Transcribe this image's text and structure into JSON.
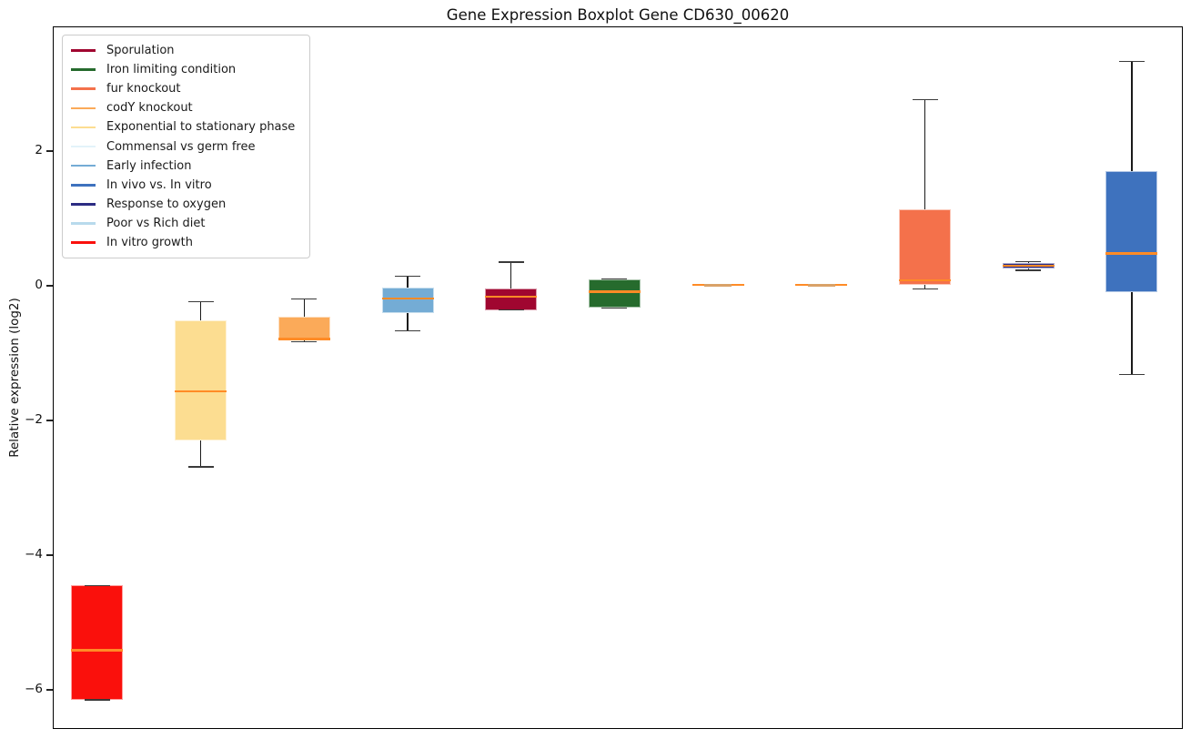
{
  "title": "Gene Expression Boxplot Gene CD630_00620",
  "axes": {
    "ylabel": "Relative expression (log2)",
    "yticks": [
      {
        "label": "2",
        "value": 2
      },
      {
        "label": "0",
        "value": 0
      },
      {
        "label": "−2",
        "value": -2
      },
      {
        "label": "−4",
        "value": -4
      },
      {
        "label": "−6",
        "value": -6
      }
    ]
  },
  "legend": {
    "items": [
      {
        "label": "Sporulation",
        "color": "#A00630"
      },
      {
        "label": "Iron limiting condition",
        "color": "#266B2D"
      },
      {
        "label": "fur knockout",
        "color": "#F4714B"
      },
      {
        "label": "codY knockout",
        "color": "#FBAA59"
      },
      {
        "label": "Exponential to stationary phase",
        "color": "#FCDD91"
      },
      {
        "label": "Commensal vs germ free",
        "color": "#E3F3FA"
      },
      {
        "label": "Early infection",
        "color": "#74ACD5"
      },
      {
        "label": "In vivo vs. In vitro",
        "color": "#3E72BE"
      },
      {
        "label": "Response to oxygen",
        "color": "#2C2C83"
      },
      {
        "label": "Poor vs Rich diet",
        "color": "#B8DAEC"
      },
      {
        "label": "In vitro growth",
        "color": "#FA100C"
      }
    ]
  },
  "colors": {
    "median": "#FF8B26",
    "whisker": "#1A1A1A",
    "cap": "#3A3A3A",
    "flat_center": "#D9A268",
    "frame": "#000000"
  },
  "chart_data": {
    "type": "boxplot",
    "title": "Gene Expression Boxplot Gene CD630_00620",
    "xlabel": "",
    "ylabel": "Relative expression (log2)",
    "ylim": [
      -6.58,
      3.85
    ],
    "yticks": [
      2,
      0,
      -2,
      -4,
      -6
    ],
    "grid": false,
    "legend_position": "upper left",
    "categories": [
      "In vitro growth",
      "Exponential to stationary phase",
      "codY knockout",
      "Early infection",
      "Sporulation",
      "Iron limiting condition",
      "Commensal vs germ free",
      "Poor vs Rich diet",
      "fur knockout",
      "Response to oxygen",
      "In vivo vs. In vitro"
    ],
    "boxes": [
      {
        "name": "In vitro growth",
        "color": "#FA100C",
        "low": -6.15,
        "q1": -6.15,
        "median": -5.41,
        "q3": -4.45,
        "high": -4.45,
        "flat": false
      },
      {
        "name": "Exponential to stationary phase",
        "color": "#FCDD91",
        "low": -2.69,
        "q1": -2.3,
        "median": -1.57,
        "q3": -0.52,
        "high": -0.24,
        "flat": false
      },
      {
        "name": "codY knockout",
        "color": "#FBAA59",
        "low": -0.83,
        "q1": -0.8,
        "median": -0.79,
        "q3": -0.46,
        "high": -0.2,
        "flat": false
      },
      {
        "name": "Early infection",
        "color": "#74ACD5",
        "low": -0.67,
        "q1": -0.4,
        "median": -0.19,
        "q3": -0.03,
        "high": 0.14,
        "flat": false
      },
      {
        "name": "Sporulation",
        "color": "#A00630",
        "low": -0.36,
        "q1": -0.36,
        "median": -0.16,
        "q3": -0.04,
        "high": 0.35,
        "flat": false
      },
      {
        "name": "Iron limiting condition",
        "color": "#266B2D",
        "low": -0.33,
        "q1": -0.33,
        "median": -0.09,
        "q3": 0.1,
        "high": 0.1,
        "flat": false
      },
      {
        "name": "Commensal vs germ free",
        "color": "#E3F3FA",
        "low": 0.01,
        "q1": 0.01,
        "median": 0.01,
        "q3": 0.01,
        "high": 0.01,
        "flat": true
      },
      {
        "name": "Poor vs Rich diet",
        "color": "#B8DAEC",
        "low": 0.01,
        "q1": 0.01,
        "median": 0.01,
        "q3": 0.01,
        "high": 0.01,
        "flat": true
      },
      {
        "name": "fur knockout",
        "color": "#F4714B",
        "low": -0.05,
        "q1": 0.01,
        "median": 0.08,
        "q3": 1.13,
        "high": 2.76,
        "flat": false
      },
      {
        "name": "Response to oxygen",
        "color": "#2C2C83",
        "low": 0.23,
        "q1": 0.26,
        "median": 0.3,
        "q3": 0.34,
        "high": 0.36,
        "flat": false
      },
      {
        "name": "In vivo vs. In vitro",
        "color": "#3E72BE",
        "low": -1.32,
        "q1": -0.1,
        "median": 0.48,
        "q3": 1.7,
        "high": 3.33,
        "flat": false
      }
    ]
  }
}
